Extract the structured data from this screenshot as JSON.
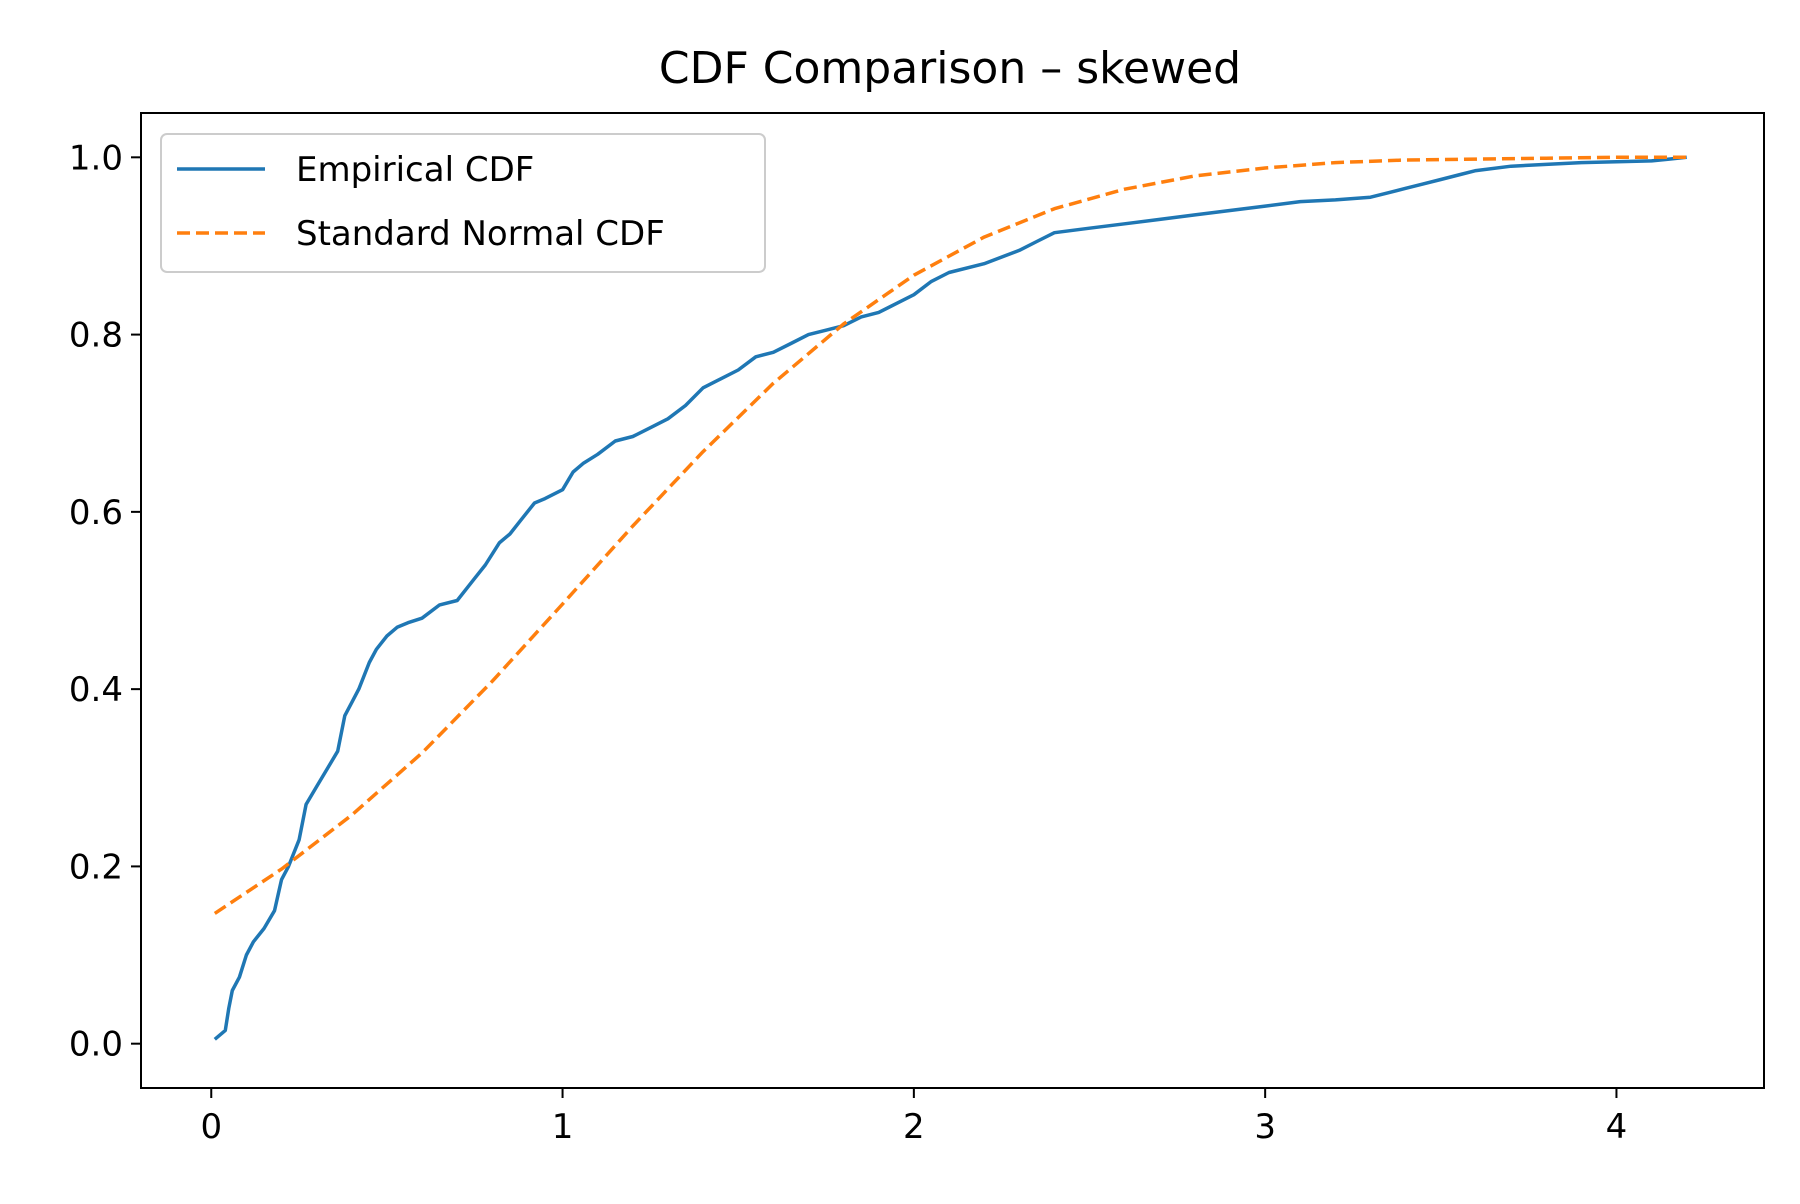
{
  "chart_data": {
    "type": "line",
    "title": "CDF Comparison – skewed",
    "xlabel": "",
    "ylabel": "",
    "xlim": [
      -0.2,
      4.42
    ],
    "ylim": [
      -0.05,
      1.05
    ],
    "xticks": [
      0,
      1,
      2,
      3,
      4
    ],
    "xtick_labels": [
      "0",
      "1",
      "2",
      "3",
      "4"
    ],
    "yticks": [
      0.0,
      0.2,
      0.4,
      0.6,
      0.8,
      1.0
    ],
    "ytick_labels": [
      "0.0",
      "0.2",
      "0.4",
      "0.6",
      "0.8",
      "1.0"
    ],
    "grid": false,
    "legend_position": "top-left",
    "series": [
      {
        "name": "Empirical CDF",
        "color": "#1f77b4",
        "style": "solid",
        "x": [
          0.01,
          0.04,
          0.05,
          0.06,
          0.08,
          0.1,
          0.12,
          0.15,
          0.18,
          0.2,
          0.22,
          0.25,
          0.27,
          0.3,
          0.33,
          0.36,
          0.38,
          0.4,
          0.42,
          0.45,
          0.47,
          0.5,
          0.53,
          0.56,
          0.6,
          0.65,
          0.7,
          0.73,
          0.75,
          0.78,
          0.82,
          0.85,
          0.88,
          0.92,
          0.95,
          1.0,
          1.03,
          1.06,
          1.1,
          1.15,
          1.2,
          1.25,
          1.3,
          1.35,
          1.4,
          1.45,
          1.5,
          1.55,
          1.6,
          1.65,
          1.7,
          1.75,
          1.8,
          1.85,
          1.9,
          1.95,
          2.0,
          2.05,
          2.1,
          2.2,
          2.3,
          2.35,
          2.4,
          2.5,
          2.6,
          2.7,
          2.8,
          2.9,
          3.0,
          3.1,
          3.2,
          3.3,
          3.35,
          3.4,
          3.45,
          3.5,
          3.55,
          3.6,
          3.7,
          3.8,
          3.9,
          4.0,
          4.1,
          4.15,
          4.2
        ],
        "y": [
          0.005,
          0.015,
          0.04,
          0.06,
          0.075,
          0.1,
          0.115,
          0.13,
          0.15,
          0.185,
          0.2,
          0.23,
          0.27,
          0.29,
          0.31,
          0.33,
          0.37,
          0.385,
          0.4,
          0.43,
          0.445,
          0.46,
          0.47,
          0.475,
          0.48,
          0.495,
          0.5,
          0.515,
          0.525,
          0.54,
          0.565,
          0.575,
          0.59,
          0.61,
          0.615,
          0.625,
          0.645,
          0.655,
          0.665,
          0.68,
          0.685,
          0.695,
          0.705,
          0.72,
          0.74,
          0.75,
          0.76,
          0.775,
          0.78,
          0.79,
          0.8,
          0.805,
          0.81,
          0.82,
          0.825,
          0.835,
          0.845,
          0.86,
          0.87,
          0.88,
          0.895,
          0.905,
          0.915,
          0.92,
          0.925,
          0.93,
          0.935,
          0.94,
          0.945,
          0.95,
          0.952,
          0.955,
          0.96,
          0.965,
          0.97,
          0.975,
          0.98,
          0.985,
          0.99,
          0.992,
          0.994,
          0.995,
          0.996,
          0.998,
          1.0
        ]
      },
      {
        "name": "Standard Normal CDF",
        "color": "#ff7f0e",
        "style": "dashed",
        "x": [
          0.01,
          0.2,
          0.4,
          0.6,
          0.8,
          1.0,
          1.2,
          1.4,
          1.6,
          1.8,
          2.0,
          2.2,
          2.4,
          2.6,
          2.8,
          3.0,
          3.2,
          3.4,
          3.6,
          3.8,
          4.0,
          4.21
        ],
        "y": [
          0.147,
          0.197,
          0.258,
          0.328,
          0.409,
          0.496,
          0.584,
          0.668,
          0.745,
          0.812,
          0.867,
          0.91,
          0.942,
          0.964,
          0.979,
          0.988,
          0.994,
          0.997,
          0.998,
          0.999,
          1.0,
          1.0
        ]
      }
    ]
  }
}
